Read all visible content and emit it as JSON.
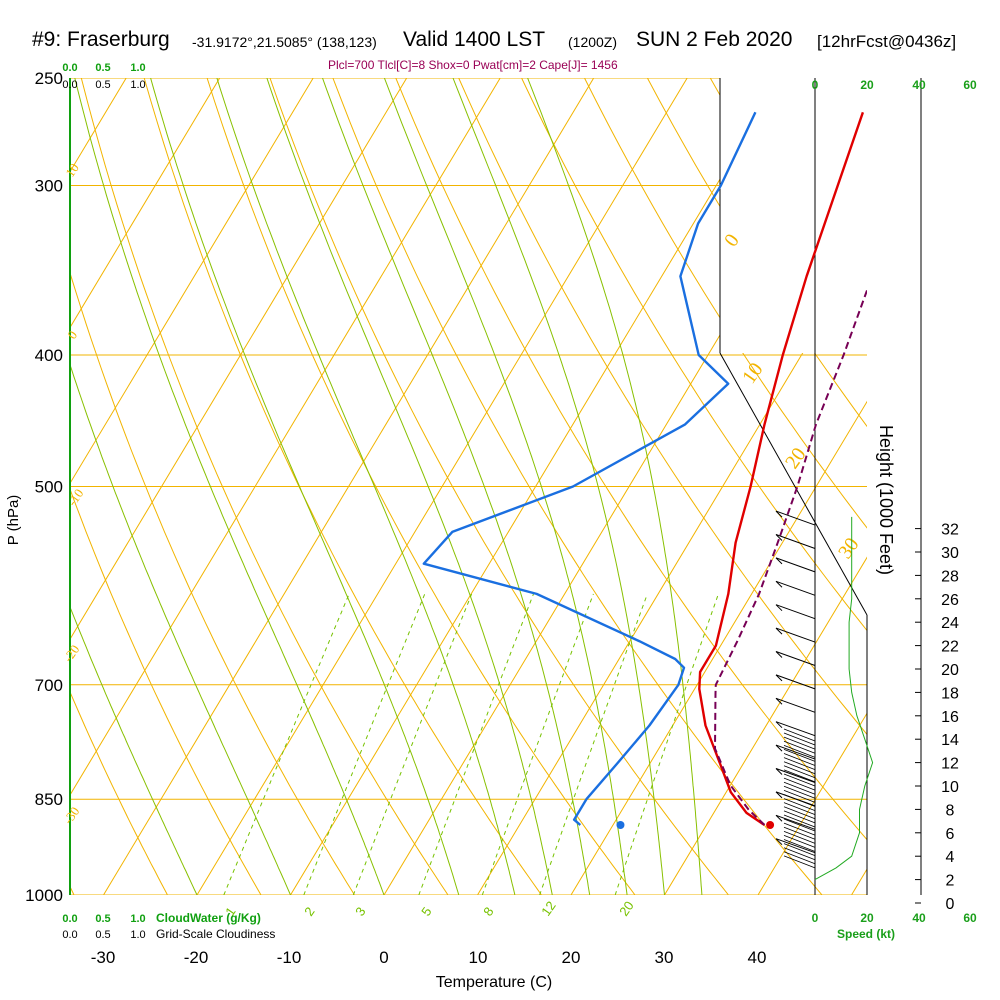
{
  "header": {
    "station": "#9: Fraserburg",
    "coords": "-31.9172°,21.5085° (138,123)",
    "valid": "Valid 1400 LST",
    "utc": "(1200Z)",
    "date": "SUN 2 Feb 2020",
    "forecast": "[12hrFcst@0436z]",
    "subtitle": "Plcl=700 Tlcl[C]=8 Shox=0 Pwat[cm]=2 Cape[J]= 1456"
  },
  "colors": {
    "isotherm": "#f2b400",
    "mixing_ratio": "#77c200",
    "adiabat": "#88c000",
    "temperature": "#e00000",
    "dewpoint": "#1a6fe0",
    "parcel": "#770055",
    "cloud_axis": "#10a010",
    "wind_speed": "#1a9f1a"
  },
  "chart_data": {
    "type": "line",
    "title": "#9: Fraserburg",
    "xlabel": "Temperature (C)",
    "ylabel": "P (hPa)",
    "y2label": "Height (1000 Feet)",
    "xlim": [
      -35,
      45
    ],
    "ylim_pressure": [
      1000,
      250
    ],
    "x_ticks": [
      "-30",
      "-20",
      "-10",
      "0",
      "10",
      "20",
      "30",
      "40"
    ],
    "pressure_ticks": [
      {
        "p": 250,
        "label": "250"
      },
      {
        "p": 300,
        "label": "300"
      },
      {
        "p": 400,
        "label": "400"
      },
      {
        "p": 500,
        "label": "500"
      },
      {
        "p": 700,
        "label": "700"
      },
      {
        "p": 850,
        "label": "850"
      },
      {
        "p": 1000,
        "label": "1000"
      }
    ],
    "height_ticks": [
      "0",
      "2",
      "4",
      "6",
      "8",
      "10",
      "12",
      "14",
      "16",
      "18",
      "20",
      "22",
      "24",
      "26",
      "28",
      "30",
      "32"
    ],
    "isotherm_labels": [
      "10",
      "0",
      "-10",
      "-20",
      "-30",
      "0",
      "10",
      "20",
      "30"
    ],
    "mixing_ratio_labels": [
      "1",
      "2",
      "3",
      "5",
      "8",
      "12",
      "20"
    ],
    "series": [
      {
        "name": "temperature",
        "points": [
          [
            36.2,
            888
          ],
          [
            33.5,
            870
          ],
          [
            30.5,
            840
          ],
          [
            27.5,
            800
          ],
          [
            23.5,
            750
          ],
          [
            20.5,
            705
          ],
          [
            19.5,
            685
          ],
          [
            19.5,
            655
          ],
          [
            17.5,
            600
          ],
          [
            15,
            550
          ],
          [
            13,
            500
          ],
          [
            10.5,
            450
          ],
          [
            8,
            400
          ],
          [
            5.5,
            350
          ],
          [
            3,
            300
          ],
          [
            1,
            265
          ]
        ]
      },
      {
        "name": "dewpoint",
        "points": [
          [
            16.5,
            888
          ],
          [
            15.5,
            880
          ],
          [
            15.5,
            850
          ],
          [
            16.5,
            800
          ],
          [
            17.5,
            750
          ],
          [
            18,
            700
          ],
          [
            17.5,
            680
          ],
          [
            16,
            670
          ],
          [
            11,
            650
          ],
          [
            -3,
            600
          ],
          [
            -17,
            570
          ],
          [
            -16,
            540
          ],
          [
            -6,
            500
          ],
          [
            2,
            450
          ],
          [
            4,
            420
          ],
          [
            -1,
            400
          ],
          [
            -8,
            350
          ],
          [
            -9.5,
            320
          ],
          [
            -9.5,
            300
          ],
          [
            -10.5,
            265
          ]
        ]
      },
      {
        "name": "parcel",
        "points": [
          [
            36.2,
            888
          ],
          [
            33.5,
            865
          ],
          [
            30,
            830
          ],
          [
            26,
            780
          ],
          [
            22.5,
            710
          ],
          [
            22,
            700
          ],
          [
            21.5,
            650
          ],
          [
            20.8,
            600
          ],
          [
            19.5,
            550
          ],
          [
            18,
            500
          ],
          [
            16,
            450
          ],
          [
            14.5,
            400
          ],
          [
            12.5,
            350
          ],
          [
            10.5,
            320
          ],
          [
            8,
            290
          ],
          [
            6.5,
            265
          ]
        ]
      }
    ],
    "surface_markers": [
      {
        "series": "dewpoint",
        "t": 20.8,
        "p": 888
      },
      {
        "series": "temperature",
        "t": 36.8,
        "p": 888
      }
    ],
    "wind_speed_profile_kt": [
      [
        0,
        2
      ],
      [
        8,
        3
      ],
      [
        14,
        4
      ],
      [
        17,
        6
      ],
      [
        17,
        8
      ],
      [
        19,
        10
      ],
      [
        22,
        12
      ],
      [
        19,
        14
      ],
      [
        16,
        16
      ],
      [
        14,
        18
      ],
      [
        13,
        20
      ],
      [
        13,
        22
      ],
      [
        13,
        24
      ],
      [
        14,
        26
      ],
      [
        14,
        28
      ],
      [
        14,
        30
      ],
      [
        14,
        33
      ]
    ],
    "wind_speed_axis": {
      "label": "Speed (kt)",
      "ticks": [
        "0",
        "20",
        "40",
        "60"
      ]
    },
    "cloud_axis": {
      "cloudwater_label": "CloudWater (g/Kg)",
      "cloudiness_label": "Grid-Scale Cloudiness",
      "ticks": [
        "0.0",
        "0.5",
        "1.0"
      ]
    }
  }
}
